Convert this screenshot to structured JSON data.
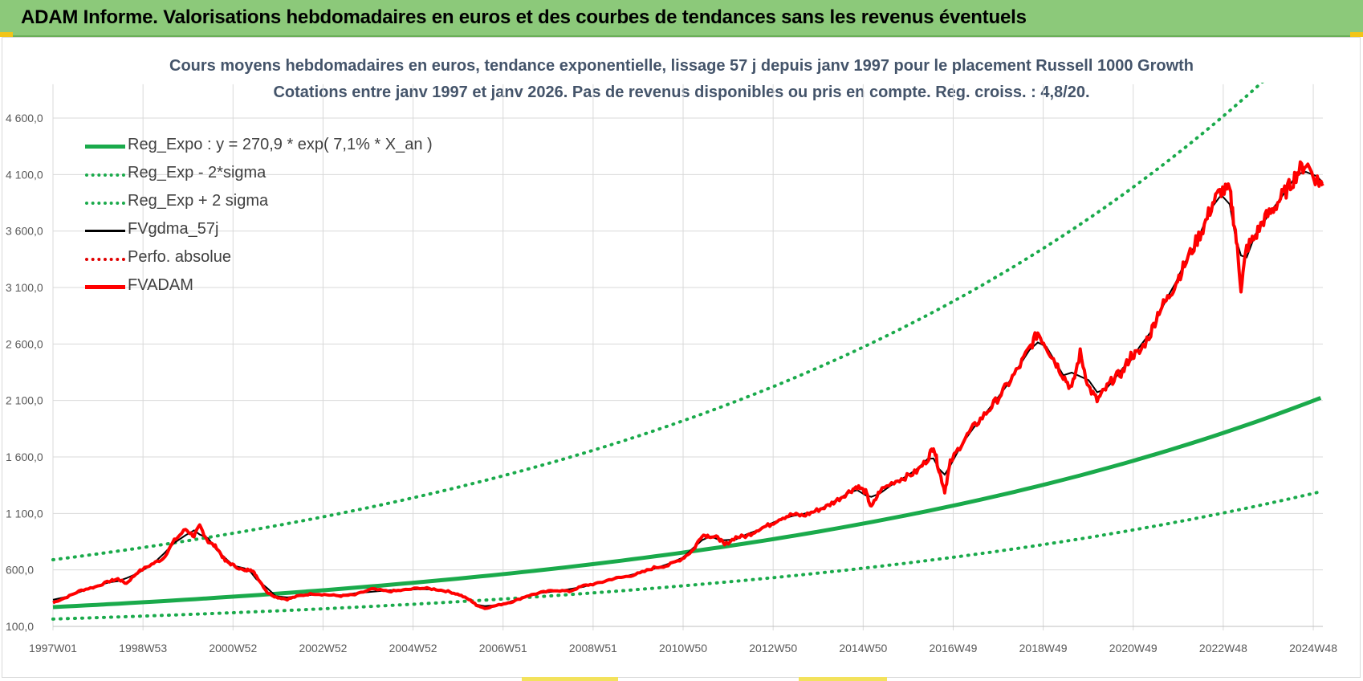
{
  "header": {
    "title": "ADAM Informe. Valorisations hebdomadaires en euros et des courbes de tendances sans les revenus éventuels"
  },
  "chart_data": {
    "type": "line",
    "title": "Cours moyens hebdomadaires en euros, tendance exponentielle, lissage 57 j depuis janv 1997 pour le placement Russell 1000 Growth",
    "subtitle": "Cotations entre janv 1997 et janv 2026. Pas de revenus disponibles ou pris  en compte. Reg. croiss. : 4,8/20.",
    "xlabel": "",
    "ylabel": "",
    "ylim": [
      100,
      4900
    ],
    "y_ticks": [
      "100,0",
      "600,0",
      "1 100,0",
      "1 600,0",
      "2 100,0",
      "2 600,0",
      "3 100,0",
      "3 600,0",
      "4 100,0",
      "4 600,0"
    ],
    "x_ticks": [
      "1997W01",
      "1998W53",
      "2000W52",
      "2002W52",
      "2004W52",
      "2006W51",
      "2008W51",
      "2010W50",
      "2012W50",
      "2014W50",
      "2016W49",
      "2018W49",
      "2020W49",
      "2022W48",
      "2024W48"
    ],
    "x_range": [
      "1997W01",
      "2026W02"
    ],
    "grid": true,
    "legend_position": "top-left",
    "series": [
      {
        "name": "Reg_Expo : y = 270,9 * exp( 7,1% *  X_an )",
        "color": "#1aaa4b",
        "style": "solid-thick",
        "formula": {
          "a": 270.9,
          "b": 0.071
        }
      },
      {
        "name": "Reg_Exp - 2*sigma",
        "color": "#1aaa4b",
        "style": "dotted",
        "formula": {
          "a": 165,
          "b": 0.071
        }
      },
      {
        "name": "Reg_Exp + 2 sigma",
        "color": "#1aaa4b",
        "style": "dotted",
        "formula": {
          "a": 690,
          "b": 0.071
        }
      },
      {
        "name": "FVgdma_57j",
        "color": "#000000",
        "style": "solid"
      },
      {
        "name": "Perfo. absolue",
        "color": "#e00000",
        "style": "dotted"
      },
      {
        "name": "FVADAM",
        "color": "#ff0000",
        "style": "solid-thick",
        "points": [
          [
            0.0,
            310
          ],
          [
            0.5,
            360
          ],
          [
            1.0,
            420
          ],
          [
            1.5,
            450
          ],
          [
            2.0,
            500
          ],
          [
            2.3,
            520
          ],
          [
            2.6,
            480
          ],
          [
            3.0,
            580
          ],
          [
            3.5,
            650
          ],
          [
            3.9,
            700
          ],
          [
            4.3,
            860
          ],
          [
            4.7,
            960
          ],
          [
            5.0,
            900
          ],
          [
            5.2,
            990
          ],
          [
            5.5,
            850
          ],
          [
            5.8,
            800
          ],
          [
            6.1,
            680
          ],
          [
            6.4,
            640
          ],
          [
            6.8,
            590
          ],
          [
            7.0,
            610
          ],
          [
            7.2,
            550
          ],
          [
            7.6,
            400
          ],
          [
            7.9,
            360
          ],
          [
            8.3,
            340
          ],
          [
            8.7,
            370
          ],
          [
            9.2,
            390
          ],
          [
            9.7,
            380
          ],
          [
            10.2,
            370
          ],
          [
            10.7,
            380
          ],
          [
            11.3,
            430
          ],
          [
            11.9,
            410
          ],
          [
            12.4,
            420
          ],
          [
            13.0,
            440
          ],
          [
            13.5,
            430
          ],
          [
            14.0,
            410
          ],
          [
            14.4,
            380
          ],
          [
            14.8,
            330
          ],
          [
            15.0,
            290
          ],
          [
            15.3,
            260
          ],
          [
            15.8,
            290
          ],
          [
            16.3,
            320
          ],
          [
            16.8,
            370
          ],
          [
            17.3,
            400
          ],
          [
            17.8,
            420
          ],
          [
            18.3,
            410
          ],
          [
            18.8,
            460
          ],
          [
            19.3,
            480
          ],
          [
            19.8,
            520
          ],
          [
            20.3,
            540
          ],
          [
            20.8,
            570
          ],
          [
            21.3,
            620
          ],
          [
            21.8,
            640
          ],
          [
            22.3,
            700
          ],
          [
            22.7,
            780
          ],
          [
            23.0,
            910
          ],
          [
            23.3,
            900
          ],
          [
            23.6,
            880
          ],
          [
            23.8,
            820
          ],
          [
            24.2,
            890
          ],
          [
            24.6,
            900
          ],
          [
            25.0,
            960
          ],
          [
            25.4,
            1000
          ],
          [
            25.8,
            1060
          ],
          [
            26.2,
            1090
          ],
          [
            26.6,
            1080
          ],
          [
            27.0,
            1120
          ],
          [
            27.4,
            1160
          ],
          [
            27.8,
            1220
          ],
          [
            28.2,
            1290
          ],
          [
            28.5,
            1340
          ],
          [
            28.8,
            1290
          ],
          [
            29.0,
            1150
          ],
          [
            29.3,
            1300
          ],
          [
            29.8,
            1380
          ],
          [
            30.2,
            1420
          ],
          [
            30.6,
            1470
          ],
          [
            31.0,
            1580
          ],
          [
            31.2,
            1700
          ],
          [
            31.4,
            1480
          ],
          [
            31.6,
            1300
          ],
          [
            31.8,
            1550
          ],
          [
            32.2,
            1720
          ],
          [
            32.6,
            1860
          ],
          [
            33.0,
            1970
          ],
          [
            33.4,
            2090
          ],
          [
            33.8,
            2230
          ],
          [
            34.2,
            2380
          ],
          [
            34.6,
            2560
          ],
          [
            34.9,
            2700
          ],
          [
            35.2,
            2580
          ],
          [
            35.5,
            2450
          ],
          [
            35.8,
            2320
          ],
          [
            36.1,
            2200
          ],
          [
            36.4,
            2520
          ],
          [
            36.7,
            2220
          ],
          [
            37.0,
            2100
          ],
          [
            37.3,
            2200
          ],
          [
            37.6,
            2300
          ],
          [
            37.9,
            2350
          ],
          [
            38.2,
            2500
          ],
          [
            38.5,
            2520
          ],
          [
            38.9,
            2700
          ],
          [
            39.2,
            2900
          ],
          [
            39.5,
            3000
          ],
          [
            39.8,
            3150
          ],
          [
            40.1,
            3300
          ],
          [
            40.5,
            3500
          ],
          [
            40.8,
            3650
          ],
          [
            41.1,
            3850
          ],
          [
            41.4,
            3960
          ],
          [
            41.7,
            3950
          ],
          [
            41.9,
            3600
          ],
          [
            42.1,
            3100
          ],
          [
            42.3,
            3450
          ],
          [
            42.6,
            3550
          ],
          [
            42.9,
            3700
          ],
          [
            43.2,
            3780
          ],
          [
            43.5,
            3890
          ],
          [
            43.8,
            3990
          ],
          [
            44.1,
            4120
          ],
          [
            44.4,
            4200
          ],
          [
            44.8,
            4050
          ],
          [
            45.0,
            4000
          ]
        ]
      }
    ]
  }
}
